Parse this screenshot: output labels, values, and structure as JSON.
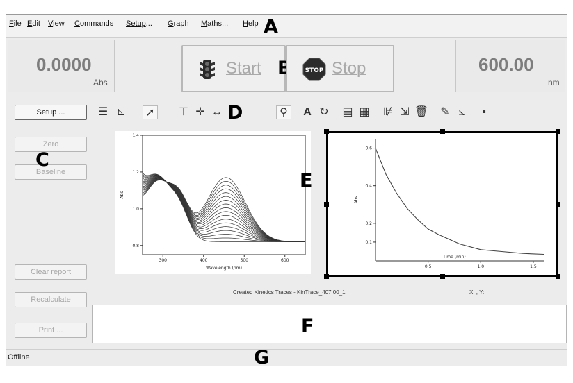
{
  "menu": [
    {
      "label": "File",
      "key": "F",
      "rest": "ile"
    },
    {
      "label": "Edit",
      "key": "E",
      "rest": "dit"
    },
    {
      "label": "View",
      "key": "V",
      "rest": "iew"
    },
    {
      "label": "Commands",
      "key": "C",
      "rest": "ommands"
    },
    {
      "label": "Setup...",
      "key": "Setup",
      "rest": "..."
    },
    {
      "label": "Graph",
      "key": "G",
      "rest": "raph"
    },
    {
      "label": "Maths...",
      "key": "M",
      "rest": "aths..."
    },
    {
      "label": "Help",
      "key": "H",
      "rest": "elp"
    }
  ],
  "callouts": {
    "a": "A",
    "b": "B",
    "c": "C",
    "d": "D",
    "e": "E",
    "f": "F",
    "g": "G"
  },
  "absorbance": {
    "value": "0.0000",
    "unit": "Abs"
  },
  "wavelength": {
    "value": "600.00",
    "unit": "nm"
  },
  "controls": {
    "start_label": "Start",
    "stop_label": "Stop",
    "stop_sign_text": "STOP"
  },
  "sidebar": {
    "setup": "Setup ...",
    "zero": "Zero",
    "baseline": "Baseline",
    "clear_report": "Clear report",
    "recalculate": "Recalculate",
    "print": "Print ..."
  },
  "toolbar_icons": [
    "list-icon",
    "axes-icon",
    "pointer-icon",
    "crosshair-icon",
    "move-icon",
    "stretch-icon",
    "zoom-icon",
    "text-icon",
    "rotate-icon",
    "graph-props-icon",
    "graph-props-alt-icon",
    "overlay-icon",
    "export-icon",
    "delete-icon",
    "report-icon",
    "axis-scale-icon",
    "more-icon"
  ],
  "caption": {
    "text": "Created Kinetics Traces - KinTrace_407.00_1",
    "cursor": "X: , Y:"
  },
  "status": {
    "text": "Offline"
  },
  "chart_data": [
    {
      "type": "line",
      "xlabel": "Wavelength (nm)",
      "ylabel": "Abs",
      "xlim": [
        250,
        650
      ],
      "ylim": [
        0.75,
        1.4
      ],
      "xticks": [
        "300",
        "400",
        "500",
        "600"
      ],
      "yticks": [
        "0.8",
        "1.0",
        "1.2",
        "1.4"
      ],
      "series_count": 18
    },
    {
      "type": "line",
      "xlabel": "Time (min)",
      "ylabel": "Abs",
      "xlim": [
        0,
        1.6
      ],
      "ylim": [
        0.0,
        0.65
      ],
      "xticks": [
        "0.5",
        "1.0",
        "1.5"
      ],
      "yticks": [
        "0.1",
        "0.2",
        "0.4",
        "0.6"
      ],
      "series": [
        {
          "x": [
            0,
            0.1,
            0.2,
            0.3,
            0.4,
            0.5,
            0.6,
            0.8,
            1.0,
            1.2,
            1.4,
            1.6
          ],
          "y": [
            0.6,
            0.46,
            0.36,
            0.28,
            0.22,
            0.17,
            0.14,
            0.09,
            0.06,
            0.05,
            0.04,
            0.035
          ]
        }
      ]
    }
  ]
}
